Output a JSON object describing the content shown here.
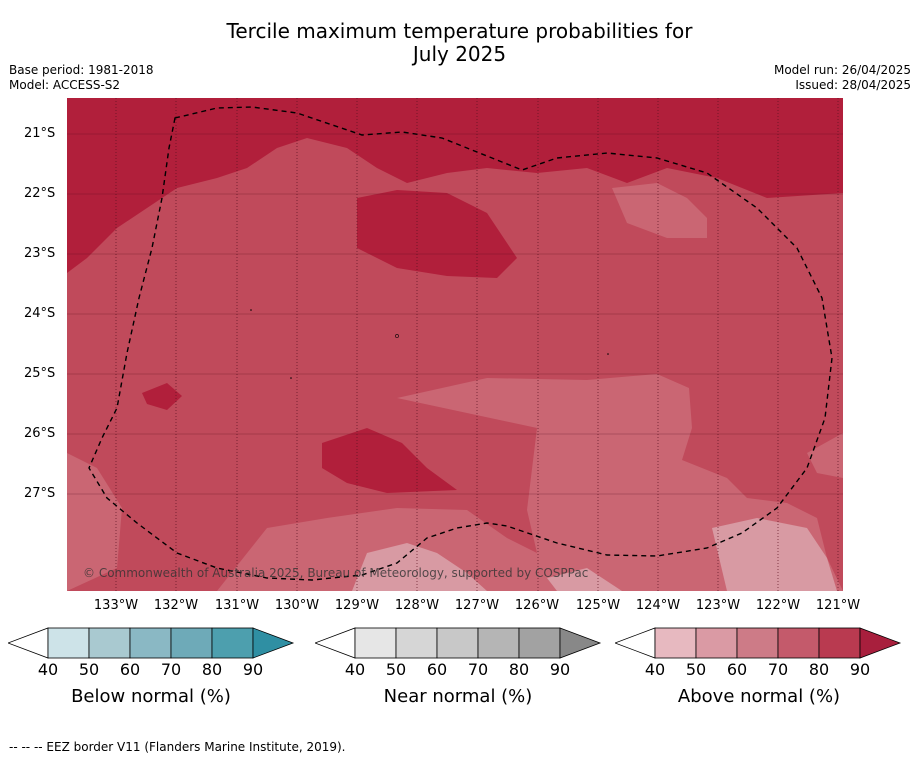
{
  "title_line1": "Tercile maximum temperature probabilities for",
  "title_line2": "July 2025",
  "base_period": "Base period: 1981-2018",
  "model": "Model: ACCESS-S2",
  "model_run": "Model run: 26/04/2025",
  "issued": "Issued: 28/04/2025",
  "copyright": "© Commonwealth of Australia 2025, Bureau of Meteorology, supported by COSPPac",
  "lat_labels": [
    "21°S",
    "22°S",
    "23°S",
    "24°S",
    "25°S",
    "26°S",
    "27°S"
  ],
  "lon_labels": [
    "133°W",
    "132°W",
    "131°W",
    "130°W",
    "129°W",
    "128°W",
    "127°W",
    "126°W",
    "125°W",
    "124°W",
    "123°W",
    "122°W",
    "121°W"
  ],
  "colorbars": [
    {
      "label": "Below normal (%)",
      "ticks": [
        "40",
        "50",
        "60",
        "70",
        "80",
        "90"
      ],
      "colors": [
        "#cde3e8",
        "#a9c9d0",
        "#8ab8c4",
        "#6eaab8",
        "#4d9fae",
        "#2f8fa3"
      ]
    },
    {
      "label": "Near normal (%)",
      "ticks": [
        "40",
        "50",
        "60",
        "70",
        "80",
        "90"
      ],
      "colors": [
        "#e6e6e6",
        "#d6d6d6",
        "#c8c8c8",
        "#b5b5b5",
        "#a2a2a2",
        "#888888"
      ]
    },
    {
      "label": "Above normal (%)",
      "ticks": [
        "40",
        "50",
        "60",
        "70",
        "80",
        "90"
      ],
      "colors": [
        "#e7b9c0",
        "#da9aa4",
        "#cd7b87",
        "#c45a6b",
        "#b93a50",
        "#a81f3d"
      ]
    }
  ],
  "map_colors": {
    "c50": "#d89aa3",
    "c60": "#ca6673",
    "c70": "#c04a5b",
    "c80": "#b11f3b"
  },
  "footer": "--  --  -- EEZ border V11 (Flanders Marine Institute, 2019)."
}
